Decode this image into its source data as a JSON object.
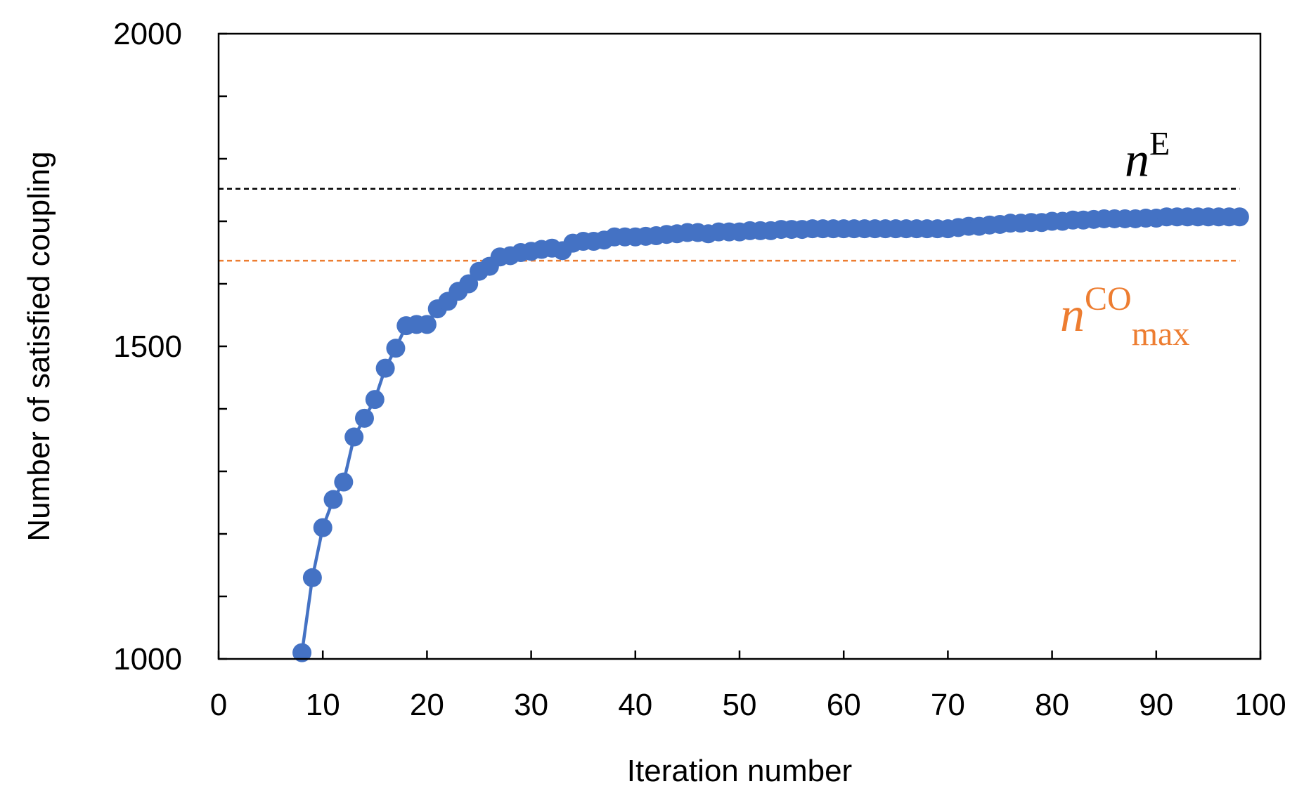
{
  "chart_data": {
    "type": "line",
    "xlabel": "Iteration number",
    "ylabel": "Number of satisfied coupling",
    "xlim": [
      0,
      100
    ],
    "ylim": [
      1000,
      2000
    ],
    "x_ticks": [
      0,
      10,
      20,
      30,
      40,
      50,
      60,
      70,
      80,
      90,
      100
    ],
    "x_tick_labels": [
      "0",
      "10",
      "20",
      "30",
      "40",
      "50",
      "60",
      "70",
      "80",
      "90",
      "100"
    ],
    "y_minor_ticks": [
      1000,
      1100,
      1200,
      1300,
      1400,
      1500,
      1600,
      1700,
      1800,
      1900,
      2000
    ],
    "y_tick_labels": [
      {
        "value": 1000,
        "label": "1000"
      },
      {
        "value": 1500,
        "label": "1500"
      },
      {
        "value": 2000,
        "label": "2000"
      }
    ],
    "grid": false,
    "legend": "none",
    "series": [
      {
        "color": "#4472C4",
        "marker": "circle",
        "x": [
          8,
          9,
          10,
          11,
          12,
          13,
          14,
          15,
          16,
          17,
          18,
          19,
          20,
          21,
          22,
          23,
          24,
          25,
          26,
          27,
          28,
          29,
          30,
          31,
          32,
          33,
          34,
          35,
          36,
          37,
          38,
          39,
          40,
          41,
          42,
          43,
          44,
          45,
          46,
          47,
          48,
          49,
          50,
          51,
          52,
          53,
          54,
          55,
          56,
          57,
          58,
          59,
          60,
          61,
          62,
          63,
          64,
          65,
          66,
          67,
          68,
          69,
          70,
          71,
          72,
          73,
          74,
          75,
          76,
          77,
          78,
          79,
          80,
          81,
          82,
          83,
          84,
          85,
          86,
          87,
          88,
          89,
          90,
          91,
          92,
          93,
          94,
          95,
          96,
          97,
          98
        ],
        "y": [
          1010,
          1130,
          1210,
          1255,
          1283,
          1355,
          1385,
          1415,
          1465,
          1497,
          1533,
          1535,
          1535,
          1560,
          1572,
          1588,
          1600,
          1620,
          1628,
          1643,
          1645,
          1650,
          1652,
          1655,
          1657,
          1653,
          1665,
          1668,
          1668,
          1670,
          1675,
          1675,
          1675,
          1676,
          1677,
          1679,
          1680,
          1682,
          1682,
          1680,
          1683,
          1683,
          1683,
          1685,
          1685,
          1685,
          1687,
          1687,
          1687,
          1688,
          1688,
          1688,
          1688,
          1688,
          1688,
          1688,
          1688,
          1688,
          1688,
          1688,
          1688,
          1688,
          1688,
          1690,
          1692,
          1692,
          1694,
          1695,
          1697,
          1697,
          1698,
          1698,
          1700,
          1700,
          1702,
          1702,
          1703,
          1704,
          1704,
          1704,
          1704,
          1705,
          1705,
          1707,
          1707,
          1707,
          1707,
          1707,
          1707,
          1707,
          1707
        ]
      }
    ],
    "reference_lines": [
      {
        "y": 1752,
        "color": "#000000",
        "style": "dashed",
        "label_base": "n",
        "label_sup": "E",
        "label_sub": ""
      },
      {
        "y": 1637,
        "color": "#ED7D31",
        "style": "dashed",
        "label_base": "n",
        "label_sup": "CO",
        "label_sub": "max"
      }
    ]
  }
}
